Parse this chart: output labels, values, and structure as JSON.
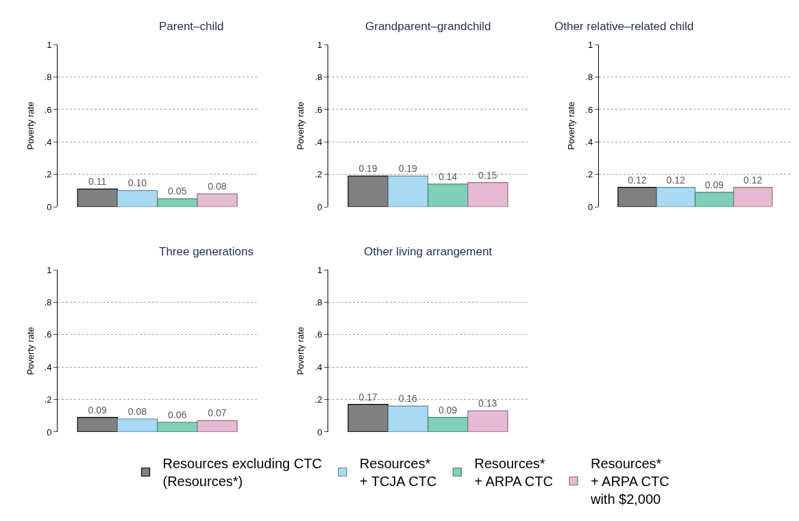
{
  "chart_data": [
    {
      "type": "bar",
      "title": "Parent–child",
      "ylabel": "Poverty rate",
      "categories": [
        null
      ],
      "ylim": [
        0,
        1
      ],
      "yticks": [
        0,
        {
          "value": 0.2,
          "label": ".2"
        },
        {
          "value": 0.4,
          "label": ".4"
        },
        {
          "value": 0.6,
          "label": ".6"
        },
        {
          "value": 0.8,
          "label": ".8"
        },
        1
      ],
      "grid": "y",
      "legend": "bottom",
      "series": [
        {
          "name": "Resources excluding CTC\n(Resources*)",
          "color": "#808080",
          "values": [
            0.11
          ],
          "value_labels": [
            "0.11"
          ]
        },
        {
          "name": "Resources*\n+ TCJA CTC",
          "color": "#a9d9f3",
          "values": [
            0.1
          ],
          "value_labels": [
            "0.10"
          ]
        },
        {
          "name": "Resources*\n+ ARPA CTC",
          "color": "#7fd0b8",
          "values": [
            0.05
          ],
          "value_labels": [
            "0.05"
          ]
        },
        {
          "name": "Resources*\n+ ARPA CTC\nwith $2,000",
          "color": "#e6bad2",
          "values": [
            0.08
          ],
          "value_labels": [
            "0.08"
          ]
        }
      ]
    },
    {
      "type": "bar",
      "title": "Grandparent–grandchild",
      "ylabel": "Poverty rate",
      "categories": [
        null
      ],
      "ylim": [
        0,
        1
      ],
      "yticks": [
        0,
        {
          "value": 0.2,
          "label": ".2"
        },
        {
          "value": 0.4,
          "label": ".4"
        },
        {
          "value": 0.6,
          "label": ".6"
        },
        {
          "value": 0.8,
          "label": ".8"
        },
        1
      ],
      "grid": "y",
      "legend": "bottom",
      "series": [
        {
          "name": "Resources excluding CTC\n(Resources*)",
          "color": "#808080",
          "values": [
            0.19
          ],
          "value_labels": [
            "0.19"
          ]
        },
        {
          "name": "Resources*\n+ TCJA CTC",
          "color": "#a9d9f3",
          "values": [
            0.19
          ],
          "value_labels": [
            "0.19"
          ]
        },
        {
          "name": "Resources*\n+ ARPA CTC",
          "color": "#7fd0b8",
          "values": [
            0.14
          ],
          "value_labels": [
            "0.14"
          ]
        },
        {
          "name": "Resources*\n+ ARPA CTC\nwith $2,000",
          "color": "#e6bad2",
          "values": [
            0.15
          ],
          "value_labels": [
            "0.15"
          ]
        }
      ]
    },
    {
      "type": "bar",
      "title": "Other relative–related child",
      "ylabel": "Poverty rate",
      "categories": [
        null
      ],
      "ylim": [
        0,
        1
      ],
      "yticks": [
        0,
        {
          "value": 0.2,
          "label": ".2"
        },
        {
          "value": 0.4,
          "label": ".4"
        },
        {
          "value": 0.6,
          "label": ".6"
        },
        {
          "value": 0.8,
          "label": ".8"
        },
        1
      ],
      "grid": "y",
      "legend": "bottom",
      "series": [
        {
          "name": "Resources excluding CTC\n(Resources*)",
          "color": "#808080",
          "values": [
            0.12
          ],
          "value_labels": [
            "0.12"
          ]
        },
        {
          "name": "Resources*\n+ TCJA CTC",
          "color": "#a9d9f3",
          "values": [
            0.12
          ],
          "value_labels": [
            "0.12"
          ]
        },
        {
          "name": "Resources*\n+ ARPA CTC",
          "color": "#7fd0b8",
          "values": [
            0.09
          ],
          "value_labels": [
            "0.09"
          ]
        },
        {
          "name": "Resources*\n+ ARPA CTC\nwith $2,000",
          "color": "#e6bad2",
          "values": [
            0.12
          ],
          "value_labels": [
            "0.12"
          ]
        }
      ]
    },
    {
      "type": "bar",
      "title": "Three generations",
      "ylabel": "Poverty rate",
      "categories": [
        null
      ],
      "ylim": [
        0,
        1
      ],
      "yticks": [
        0,
        {
          "value": 0.2,
          "label": ".2"
        },
        {
          "value": 0.4,
          "label": ".4"
        },
        {
          "value": 0.6,
          "label": ".6"
        },
        {
          "value": 0.8,
          "label": ".8"
        },
        1
      ],
      "grid": "y",
      "legend": "bottom",
      "series": [
        {
          "name": "Resources excluding CTC\n(Resources*)",
          "color": "#808080",
          "values": [
            0.09
          ],
          "value_labels": [
            "0.09"
          ]
        },
        {
          "name": "Resources*\n+ TCJA CTC",
          "color": "#a9d9f3",
          "values": [
            0.08
          ],
          "value_labels": [
            "0.08"
          ]
        },
        {
          "name": "Resources*\n+ ARPA CTC",
          "color": "#7fd0b8",
          "values": [
            0.06
          ],
          "value_labels": [
            "0.06"
          ]
        },
        {
          "name": "Resources*\n+ ARPA CTC\nwith $2,000",
          "color": "#e6bad2",
          "values": [
            0.07
          ],
          "value_labels": [
            "0.07"
          ]
        }
      ]
    },
    {
      "type": "bar",
      "title": "Other living arrangement",
      "ylabel": "Poverty rate",
      "categories": [
        null
      ],
      "ylim": [
        0,
        1
      ],
      "yticks": [
        0,
        {
          "value": 0.2,
          "label": ".2"
        },
        {
          "value": 0.4,
          "label": ".4"
        },
        {
          "value": 0.6,
          "label": ".6"
        },
        {
          "value": 0.8,
          "label": ".8"
        },
        1
      ],
      "grid": "y",
      "legend": "bottom",
      "series": [
        {
          "name": "Resources excluding CTC\n(Resources*)",
          "color": "#808080",
          "values": [
            0.17
          ],
          "value_labels": [
            "0.17"
          ]
        },
        {
          "name": "Resources*\n+ TCJA CTC",
          "color": "#a9d9f3",
          "values": [
            0.16
          ],
          "value_labels": [
            "0.16"
          ]
        },
        {
          "name": "Resources*\n+ ARPA CTC",
          "color": "#7fd0b8",
          "values": [
            0.09
          ],
          "value_labels": [
            "0.09"
          ]
        },
        {
          "name": "Resources*\n+ ARPA CTC\nwith $2,000",
          "color": "#e6bad2",
          "values": [
            0.13
          ],
          "value_labels": [
            "0.13"
          ]
        }
      ]
    }
  ]
}
